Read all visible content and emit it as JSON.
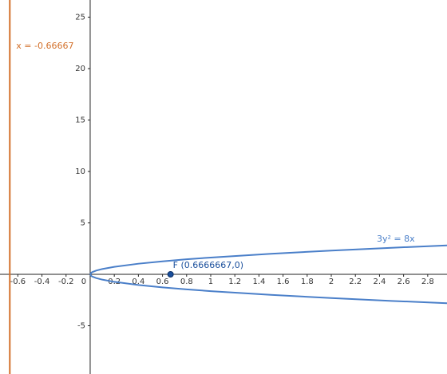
{
  "chart_data": {
    "type": "line",
    "xlim": [
      -0.748,
      2.96
    ],
    "ylim": [
      -9.69,
      26.67
    ],
    "xticks": [
      -0.6,
      -0.4,
      -0.2,
      0,
      0.2,
      0.4,
      0.6,
      0.8,
      1,
      1.2,
      1.4,
      1.6,
      1.8,
      2,
      2.2,
      2.4,
      2.6,
      2.8
    ],
    "yticks": [
      -5,
      5,
      10,
      15,
      20,
      25
    ],
    "curve_label": "3y² = 8x",
    "series": [
      {
        "color": "#4a7fc9",
        "x": [
          0,
          0.01,
          0.02,
          0.05,
          0.1,
          0.2,
          0.4,
          0.6,
          0.8,
          1,
          1.5,
          2,
          2.5,
          2.96
        ],
        "values": [
          0,
          0.163,
          0.231,
          0.365,
          0.516,
          0.73,
          1.033,
          1.265,
          1.461,
          1.633,
          2,
          2.309,
          2.582,
          2.809
        ]
      },
      {
        "color": "#4a7fc9",
        "x": [
          0,
          0.01,
          0.02,
          0.05,
          0.1,
          0.2,
          0.4,
          0.6,
          0.8,
          1,
          1.5,
          2,
          2.5,
          2.96
        ],
        "values": [
          0,
          -0.163,
          -0.231,
          -0.365,
          -0.516,
          -0.73,
          -1.033,
          -1.265,
          -1.461,
          -1.633,
          -2,
          -2.309,
          -2.582,
          -2.809
        ]
      }
    ],
    "vertical_lines": [
      {
        "x": -0.66667,
        "label": "x = -0.66667",
        "color": "#d3702a"
      }
    ],
    "points": [
      {
        "x": 0.6666667,
        "y": 0,
        "label": "F (0.6666667,0)",
        "color": "#1a4f9c"
      }
    ]
  }
}
